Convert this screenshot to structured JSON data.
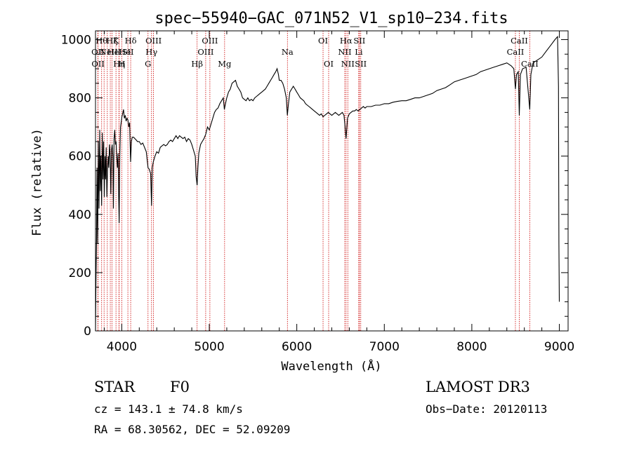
{
  "chart_data": {
    "type": "line",
    "title": "spec−55940−GAC_071N52_V1_sp10−234.fits",
    "xlabel": "Wavelength (Å)",
    "ylabel": "Flux (relative)",
    "xlim": [
      3700,
      9100
    ],
    "ylim": [
      0,
      1030
    ],
    "xticks": [
      4000,
      5000,
      6000,
      7000,
      8000,
      9000
    ],
    "yticks": [
      0,
      200,
      400,
      600,
      800,
      1000
    ],
    "line_color": "#000000",
    "marker_color": "#cc0000",
    "series": [
      {
        "name": "flux",
        "points": [
          [
            3700,
            0
          ],
          [
            3705,
            160
          ],
          [
            3712,
            320
          ],
          [
            3718,
            560
          ],
          [
            3725,
            300
          ],
          [
            3732,
            650
          ],
          [
            3740,
            420
          ],
          [
            3748,
            690
          ],
          [
            3755,
            480
          ],
          [
            3762,
            600
          ],
          [
            3770,
            430
          ],
          [
            3778,
            680
          ],
          [
            3785,
            520
          ],
          [
            3793,
            650
          ],
          [
            3800,
            460
          ],
          [
            3808,
            600
          ],
          [
            3815,
            520
          ],
          [
            3822,
            630
          ],
          [
            3830,
            460
          ],
          [
            3838,
            560
          ],
          [
            3845,
            600
          ],
          [
            3852,
            560
          ],
          [
            3860,
            640
          ],
          [
            3868,
            600
          ],
          [
            3875,
            470
          ],
          [
            3882,
            620
          ],
          [
            3890,
            640
          ],
          [
            3898,
            600
          ],
          [
            3905,
            420
          ],
          [
            3912,
            660
          ],
          [
            3920,
            690
          ],
          [
            3928,
            640
          ],
          [
            3935,
            650
          ],
          [
            3942,
            600
          ],
          [
            3950,
            560
          ],
          [
            3958,
            610
          ],
          [
            3965,
            460
          ],
          [
            3970,
            370
          ],
          [
            3978,
            600
          ],
          [
            3986,
            700
          ],
          [
            3995,
            720
          ],
          [
            4002,
            735
          ],
          [
            4010,
            745
          ],
          [
            4020,
            760
          ],
          [
            4030,
            730
          ],
          [
            4040,
            740
          ],
          [
            4050,
            720
          ],
          [
            4060,
            730
          ],
          [
            4070,
            725
          ],
          [
            4080,
            700
          ],
          [
            4090,
            715
          ],
          [
            4101,
            580
          ],
          [
            4110,
            650
          ],
          [
            4120,
            665
          ],
          [
            4135,
            665
          ],
          [
            4150,
            660
          ],
          [
            4165,
            655
          ],
          [
            4180,
            650
          ],
          [
            4200,
            650
          ],
          [
            4220,
            640
          ],
          [
            4240,
            645
          ],
          [
            4260,
            630
          ],
          [
            4280,
            615
          ],
          [
            4300,
            560
          ],
          [
            4315,
            555
          ],
          [
            4330,
            540
          ],
          [
            4340,
            430
          ],
          [
            4348,
            560
          ],
          [
            4360,
            580
          ],
          [
            4380,
            600
          ],
          [
            4400,
            615
          ],
          [
            4420,
            610
          ],
          [
            4440,
            630
          ],
          [
            4460,
            635
          ],
          [
            4480,
            640
          ],
          [
            4500,
            635
          ],
          [
            4520,
            640
          ],
          [
            4540,
            650
          ],
          [
            4560,
            655
          ],
          [
            4580,
            650
          ],
          [
            4600,
            660
          ],
          [
            4620,
            670
          ],
          [
            4640,
            660
          ],
          [
            4660,
            670
          ],
          [
            4680,
            665
          ],
          [
            4700,
            660
          ],
          [
            4720,
            665
          ],
          [
            4740,
            650
          ],
          [
            4760,
            660
          ],
          [
            4780,
            655
          ],
          [
            4800,
            640
          ],
          [
            4820,
            620
          ],
          [
            4840,
            600
          ],
          [
            4850,
            530
          ],
          [
            4861,
            500
          ],
          [
            4870,
            560
          ],
          [
            4880,
            610
          ],
          [
            4900,
            640
          ],
          [
            4920,
            650
          ],
          [
            4940,
            660
          ],
          [
            4960,
            675
          ],
          [
            4980,
            700
          ],
          [
            5000,
            690
          ],
          [
            5020,
            710
          ],
          [
            5040,
            730
          ],
          [
            5060,
            750
          ],
          [
            5080,
            760
          ],
          [
            5100,
            765
          ],
          [
            5120,
            780
          ],
          [
            5140,
            790
          ],
          [
            5160,
            800
          ],
          [
            5172,
            760
          ],
          [
            5185,
            780
          ],
          [
            5200,
            800
          ],
          [
            5220,
            820
          ],
          [
            5240,
            830
          ],
          [
            5260,
            850
          ],
          [
            5280,
            855
          ],
          [
            5300,
            860
          ],
          [
            5320,
            840
          ],
          [
            5340,
            830
          ],
          [
            5360,
            820
          ],
          [
            5380,
            800
          ],
          [
            5400,
            795
          ],
          [
            5420,
            790
          ],
          [
            5440,
            800
          ],
          [
            5460,
            790
          ],
          [
            5480,
            795
          ],
          [
            5500,
            790
          ],
          [
            5520,
            800
          ],
          [
            5540,
            805
          ],
          [
            5560,
            810
          ],
          [
            5580,
            815
          ],
          [
            5600,
            820
          ],
          [
            5620,
            825
          ],
          [
            5640,
            830
          ],
          [
            5660,
            840
          ],
          [
            5680,
            850
          ],
          [
            5700,
            860
          ],
          [
            5720,
            870
          ],
          [
            5740,
            880
          ],
          [
            5760,
            890
          ],
          [
            5775,
            900
          ],
          [
            5790,
            880
          ],
          [
            5800,
            860
          ],
          [
            5820,
            860
          ],
          [
            5840,
            850
          ],
          [
            5860,
            830
          ],
          [
            5880,
            800
          ],
          [
            5892,
            740
          ],
          [
            5905,
            780
          ],
          [
            5920,
            820
          ],
          [
            5940,
            830
          ],
          [
            5960,
            840
          ],
          [
            5980,
            830
          ],
          [
            6000,
            820
          ],
          [
            6020,
            810
          ],
          [
            6040,
            800
          ],
          [
            6060,
            795
          ],
          [
            6080,
            790
          ],
          [
            6100,
            780
          ],
          [
            6120,
            775
          ],
          [
            6140,
            770
          ],
          [
            6160,
            765
          ],
          [
            6180,
            760
          ],
          [
            6200,
            755
          ],
          [
            6220,
            750
          ],
          [
            6240,
            745
          ],
          [
            6260,
            740
          ],
          [
            6280,
            745
          ],
          [
            6300,
            735
          ],
          [
            6320,
            740
          ],
          [
            6340,
            745
          ],
          [
            6360,
            750
          ],
          [
            6380,
            745
          ],
          [
            6400,
            740
          ],
          [
            6420,
            745
          ],
          [
            6440,
            750
          ],
          [
            6460,
            745
          ],
          [
            6480,
            740
          ],
          [
            6500,
            745
          ],
          [
            6520,
            750
          ],
          [
            6540,
            740
          ],
          [
            6563,
            660
          ],
          [
            6580,
            730
          ],
          [
            6600,
            745
          ],
          [
            6620,
            750
          ],
          [
            6640,
            755
          ],
          [
            6660,
            755
          ],
          [
            6680,
            760
          ],
          [
            6700,
            755
          ],
          [
            6720,
            760
          ],
          [
            6740,
            765
          ],
          [
            6760,
            770
          ],
          [
            6780,
            765
          ],
          [
            6800,
            770
          ],
          [
            6850,
            770
          ],
          [
            6900,
            775
          ],
          [
            6950,
            775
          ],
          [
            7000,
            780
          ],
          [
            7050,
            780
          ],
          [
            7100,
            785
          ],
          [
            7150,
            788
          ],
          [
            7200,
            790
          ],
          [
            7250,
            790
          ],
          [
            7300,
            795
          ],
          [
            7350,
            800
          ],
          [
            7400,
            800
          ],
          [
            7450,
            805
          ],
          [
            7500,
            810
          ],
          [
            7550,
            815
          ],
          [
            7600,
            825
          ],
          [
            7650,
            830
          ],
          [
            7700,
            835
          ],
          [
            7750,
            845
          ],
          [
            7800,
            855
          ],
          [
            7850,
            860
          ],
          [
            7900,
            865
          ],
          [
            7950,
            870
          ],
          [
            8000,
            875
          ],
          [
            8050,
            880
          ],
          [
            8100,
            890
          ],
          [
            8150,
            895
          ],
          [
            8200,
            900
          ],
          [
            8250,
            905
          ],
          [
            8300,
            910
          ],
          [
            8350,
            915
          ],
          [
            8400,
            920
          ],
          [
            8450,
            910
          ],
          [
            8480,
            900
          ],
          [
            8498,
            830
          ],
          [
            8510,
            880
          ],
          [
            8530,
            890
          ],
          [
            8542,
            740
          ],
          [
            8555,
            880
          ],
          [
            8580,
            900
          ],
          [
            8620,
            905
          ],
          [
            8662,
            760
          ],
          [
            8675,
            880
          ],
          [
            8700,
            920
          ],
          [
            8750,
            930
          ],
          [
            8800,
            940
          ],
          [
            8850,
            960
          ],
          [
            8900,
            980
          ],
          [
            8950,
            1000
          ],
          [
            8980,
            1010
          ],
          [
            8990,
            840
          ],
          [
            8995,
            300
          ],
          [
            9000,
            100
          ]
        ]
      }
    ],
    "lines": [
      {
        "wl": 3727,
        "label": "OII",
        "row": 2
      },
      {
        "wl": 3729,
        "label": "OII",
        "row": 3
      },
      {
        "wl": 3770,
        "label": "Hθ",
        "row": 1
      },
      {
        "wl": 3798,
        "label": "",
        "row": 0
      },
      {
        "wl": 3835,
        "label": "",
        "row": 0
      },
      {
        "wl": 3869,
        "label": "NeIII",
        "row": 2
      },
      {
        "wl": 3889,
        "label": "Hζ",
        "row": 1
      },
      {
        "wl": 3934,
        "label": "K",
        "row": 1
      },
      {
        "wl": 3968,
        "label": "HeHe",
        "row": 2
      },
      {
        "wl": 3970,
        "label": "Hη",
        "row": 3
      },
      {
        "wl": 4000,
        "label": "H",
        "row": 3
      },
      {
        "wl": 4070,
        "label": "SII",
        "row": 2
      },
      {
        "wl": 4102,
        "label": "Hδ",
        "row": 1
      },
      {
        "wl": 4300,
        "label": "G",
        "row": 3
      },
      {
        "wl": 4340,
        "label": "Hγ",
        "row": 2
      },
      {
        "wl": 4363,
        "label": "OIII",
        "row": 1
      },
      {
        "wl": 4861,
        "label": "Hβ",
        "row": 3
      },
      {
        "wl": 4959,
        "label": "OIII",
        "row": 2
      },
      {
        "wl": 5007,
        "label": "OIII",
        "row": 1
      },
      {
        "wl": 5175,
        "label": "Mg",
        "row": 3
      },
      {
        "wl": 5893,
        "label": "Na",
        "row": 2
      },
      {
        "wl": 6300,
        "label": "OI",
        "row": 1
      },
      {
        "wl": 6364,
        "label": "OI",
        "row": 3
      },
      {
        "wl": 6548,
        "label": "NII",
        "row": 2
      },
      {
        "wl": 6563,
        "label": "Hα",
        "row": 1
      },
      {
        "wl": 6583,
        "label": "NII",
        "row": 3
      },
      {
        "wl": 6708,
        "label": "Li",
        "row": 2
      },
      {
        "wl": 6716,
        "label": "SII",
        "row": 1
      },
      {
        "wl": 6731,
        "label": "SII",
        "row": 3
      },
      {
        "wl": 8498,
        "label": "CaII",
        "row": 2
      },
      {
        "wl": 8542,
        "label": "CaII",
        "row": 1
      },
      {
        "wl": 8662,
        "label": "CaII",
        "row": 3
      }
    ]
  },
  "info": {
    "class": "STAR",
    "subclass": "F0",
    "survey": "LAMOST DR3",
    "cz": "cz = 143.1 ± 74.8 km/s",
    "obsdate": "Obs−Date: 20120113",
    "radec": "RA =  68.30562, DEC =  52.09209"
  }
}
